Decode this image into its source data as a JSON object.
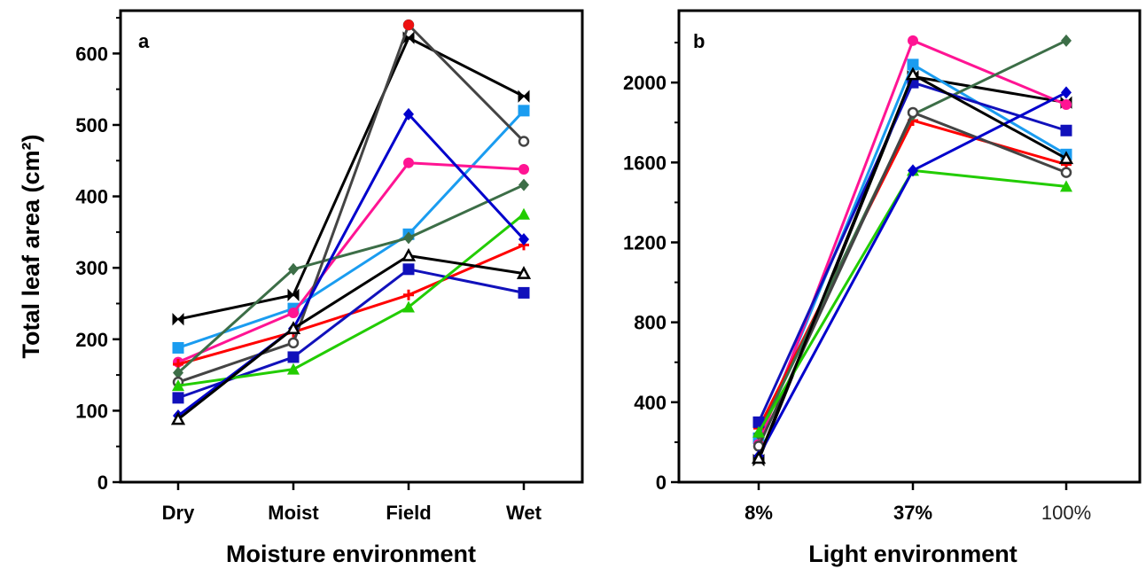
{
  "chart_data": [
    {
      "type": "line",
      "panel_label": "a",
      "xlabel": "Moisture environment",
      "ylabel": "Total leaf area (cm²)",
      "categories": [
        "Dry",
        "Moist",
        "Field",
        "Wet"
      ],
      "ylim": [
        0,
        660
      ],
      "yticks": [
        0,
        100,
        200,
        300,
        400,
        500,
        600
      ],
      "ytick_labels": [
        "0",
        "100",
        "200",
        "300",
        "400",
        "500",
        "600"
      ],
      "series": [
        {
          "color": "#000000",
          "marker": "bowtie",
          "values": [
            228,
            262,
            622,
            540
          ]
        },
        {
          "color": "#1a9cf0",
          "marker": "square",
          "values": [
            188,
            243,
            347,
            520
          ]
        },
        {
          "color": "#ff1493",
          "marker": "circle",
          "values": [
            168,
            237,
            447,
            438
          ]
        },
        {
          "color": "#ff0000",
          "marker": "plus",
          "values": [
            165,
            210,
            262,
            332
          ]
        },
        {
          "color": "#3c6e47",
          "marker": "diamond",
          "values": [
            153,
            298,
            342,
            416
          ]
        },
        {
          "color": "#444444",
          "marker": "circle-open",
          "values": [
            140,
            195,
            640,
            477
          ]
        },
        {
          "color": "#1111bb",
          "marker": "square",
          "values": [
            118,
            175,
            298,
            265
          ]
        },
        {
          "color": "#22cc00",
          "marker": "triangle",
          "values": [
            135,
            158,
            245,
            375
          ]
        },
        {
          "color": "#0000cc",
          "marker": "diamond",
          "values": [
            93,
            215,
            515,
            340
          ]
        },
        {
          "color": "#000000",
          "marker": "triangle-open",
          "values": [
            88,
            215,
            317,
            292
          ]
        },
        {
          "color": "#ee1111",
          "marker": "circle",
          "values": [
            null,
            null,
            640,
            null
          ]
        }
      ]
    },
    {
      "type": "line",
      "panel_label": "b",
      "xlabel": "Light environment",
      "ylabel": "",
      "categories": [
        "8%",
        "37%",
        "100%"
      ],
      "ylim": [
        0,
        2360
      ],
      "yticks": [
        0,
        400,
        800,
        1200,
        1600,
        2000
      ],
      "ytick_labels": [
        "0",
        "400",
        "800",
        "1200",
        "1600",
        "2000"
      ],
      "series": [
        {
          "color": "#000000",
          "marker": "bowtie",
          "values": [
            110,
            2030,
            1900
          ]
        },
        {
          "color": "#1a9cf0",
          "marker": "square",
          "values": [
            220,
            2090,
            1640
          ]
        },
        {
          "color": "#ff1493",
          "marker": "circle",
          "values": [
            190,
            2210,
            1890
          ]
        },
        {
          "color": "#ff0000",
          "marker": "plus",
          "values": [
            270,
            1810,
            1590
          ]
        },
        {
          "color": "#3c6e47",
          "marker": "diamond",
          "values": [
            240,
            1840,
            2210
          ]
        },
        {
          "color": "#444444",
          "marker": "circle-open",
          "values": [
            180,
            1850,
            1550
          ]
        },
        {
          "color": "#1111bb",
          "marker": "square",
          "values": [
            300,
            2000,
            1760
          ]
        },
        {
          "color": "#22cc00",
          "marker": "triangle",
          "values": [
            250,
            1560,
            1480
          ]
        },
        {
          "color": "#0000cc",
          "marker": "diamond",
          "values": [
            130,
            1560,
            1950
          ]
        },
        {
          "color": "#000000",
          "marker": "triangle-open",
          "values": [
            120,
            2040,
            1620
          ]
        }
      ]
    }
  ]
}
